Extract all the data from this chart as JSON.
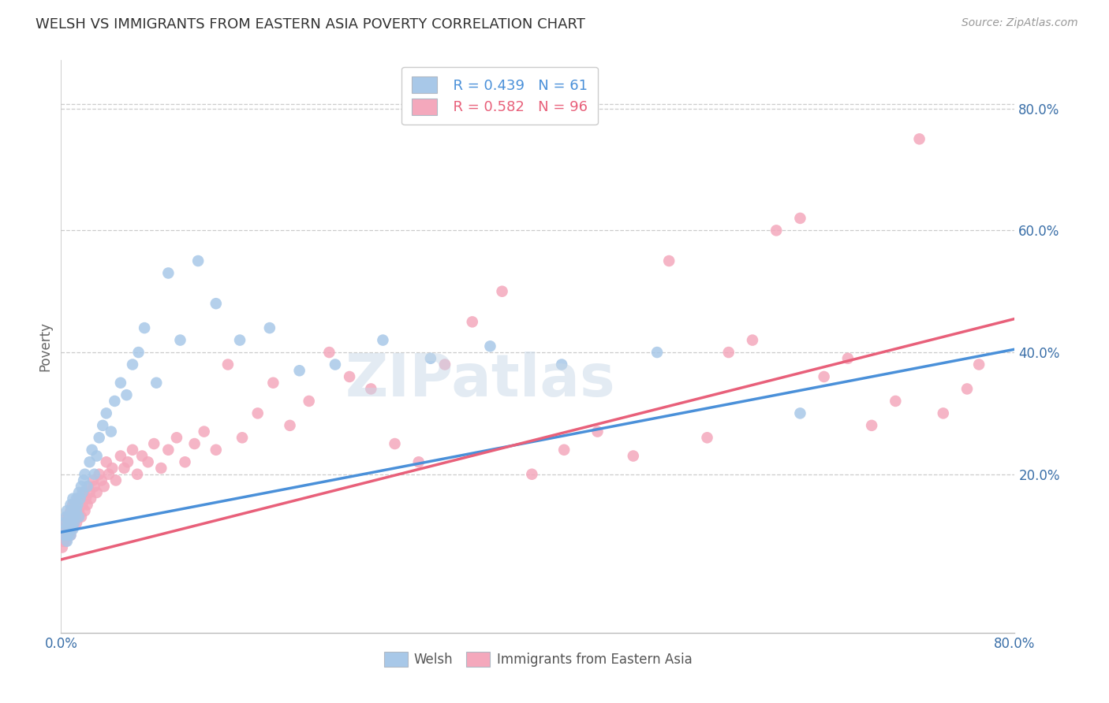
{
  "title": "WELSH VS IMMIGRANTS FROM EASTERN ASIA POVERTY CORRELATION CHART",
  "source": "Source: ZipAtlas.com",
  "ylabel": "Poverty",
  "y_tick_labels_right": [
    "80.0%",
    "60.0%",
    "40.0%",
    "20.0%"
  ],
  "y_tick_positions_right": [
    0.8,
    0.6,
    0.4,
    0.2
  ],
  "x_min": 0.0,
  "x_max": 0.8,
  "y_min": -0.06,
  "y_max": 0.88,
  "legend_welsh": "Welsh",
  "legend_immigrants": "Immigrants from Eastern Asia",
  "r_welsh": "R = 0.439",
  "n_welsh": "N = 61",
  "r_immigrants": "R = 0.582",
  "n_immigrants": "N = 96",
  "color_welsh": "#a8c8e8",
  "color_immigrants": "#f4a8bc",
  "line_color_welsh": "#4a90d9",
  "line_color_immigrants": "#e8607a",
  "watermark": "ZIPatlas",
  "welsh_x": [
    0.002,
    0.003,
    0.004,
    0.004,
    0.005,
    0.005,
    0.006,
    0.006,
    0.007,
    0.007,
    0.008,
    0.008,
    0.009,
    0.009,
    0.01,
    0.01,
    0.01,
    0.011,
    0.011,
    0.012,
    0.012,
    0.013,
    0.013,
    0.014,
    0.015,
    0.015,
    0.016,
    0.017,
    0.018,
    0.019,
    0.02,
    0.022,
    0.024,
    0.026,
    0.028,
    0.03,
    0.032,
    0.035,
    0.038,
    0.042,
    0.045,
    0.05,
    0.055,
    0.06,
    0.065,
    0.07,
    0.08,
    0.09,
    0.1,
    0.115,
    0.13,
    0.15,
    0.175,
    0.2,
    0.23,
    0.27,
    0.31,
    0.36,
    0.42,
    0.5,
    0.62
  ],
  "welsh_y": [
    0.12,
    0.1,
    0.11,
    0.13,
    0.09,
    0.14,
    0.1,
    0.12,
    0.11,
    0.13,
    0.1,
    0.15,
    0.12,
    0.14,
    0.11,
    0.13,
    0.16,
    0.12,
    0.14,
    0.13,
    0.15,
    0.14,
    0.16,
    0.15,
    0.17,
    0.13,
    0.16,
    0.18,
    0.17,
    0.19,
    0.2,
    0.18,
    0.22,
    0.24,
    0.2,
    0.23,
    0.26,
    0.28,
    0.3,
    0.27,
    0.32,
    0.35,
    0.33,
    0.38,
    0.4,
    0.44,
    0.35,
    0.53,
    0.42,
    0.55,
    0.48,
    0.42,
    0.44,
    0.37,
    0.38,
    0.42,
    0.39,
    0.41,
    0.38,
    0.4,
    0.3
  ],
  "immigrants_x": [
    0.001,
    0.002,
    0.002,
    0.003,
    0.003,
    0.004,
    0.004,
    0.005,
    0.005,
    0.006,
    0.006,
    0.007,
    0.007,
    0.008,
    0.008,
    0.009,
    0.009,
    0.01,
    0.01,
    0.011,
    0.011,
    0.012,
    0.012,
    0.013,
    0.013,
    0.014,
    0.014,
    0.015,
    0.016,
    0.017,
    0.017,
    0.018,
    0.019,
    0.02,
    0.021,
    0.022,
    0.023,
    0.024,
    0.025,
    0.027,
    0.028,
    0.03,
    0.032,
    0.034,
    0.036,
    0.038,
    0.04,
    0.043,
    0.046,
    0.05,
    0.053,
    0.056,
    0.06,
    0.064,
    0.068,
    0.073,
    0.078,
    0.084,
    0.09,
    0.097,
    0.104,
    0.112,
    0.12,
    0.13,
    0.14,
    0.152,
    0.165,
    0.178,
    0.192,
    0.208,
    0.225,
    0.242,
    0.26,
    0.28,
    0.3,
    0.322,
    0.345,
    0.37,
    0.395,
    0.422,
    0.45,
    0.48,
    0.51,
    0.542,
    0.56,
    0.58,
    0.6,
    0.62,
    0.64,
    0.66,
    0.68,
    0.7,
    0.72,
    0.74,
    0.76,
    0.77
  ],
  "immigrants_y": [
    0.08,
    0.1,
    0.09,
    0.11,
    0.1,
    0.09,
    0.12,
    0.11,
    0.13,
    0.1,
    0.12,
    0.11,
    0.13,
    0.1,
    0.14,
    0.12,
    0.11,
    0.13,
    0.15,
    0.12,
    0.14,
    0.13,
    0.15,
    0.12,
    0.14,
    0.13,
    0.16,
    0.14,
    0.15,
    0.13,
    0.16,
    0.15,
    0.17,
    0.14,
    0.16,
    0.15,
    0.18,
    0.17,
    0.16,
    0.19,
    0.18,
    0.17,
    0.2,
    0.19,
    0.18,
    0.22,
    0.2,
    0.21,
    0.19,
    0.23,
    0.21,
    0.22,
    0.24,
    0.2,
    0.23,
    0.22,
    0.25,
    0.21,
    0.24,
    0.26,
    0.22,
    0.25,
    0.27,
    0.24,
    0.38,
    0.26,
    0.3,
    0.35,
    0.28,
    0.32,
    0.4,
    0.36,
    0.34,
    0.25,
    0.22,
    0.38,
    0.45,
    0.5,
    0.2,
    0.24,
    0.27,
    0.23,
    0.55,
    0.26,
    0.4,
    0.42,
    0.6,
    0.62,
    0.36,
    0.39,
    0.28,
    0.32,
    0.75,
    0.3,
    0.34,
    0.38
  ]
}
